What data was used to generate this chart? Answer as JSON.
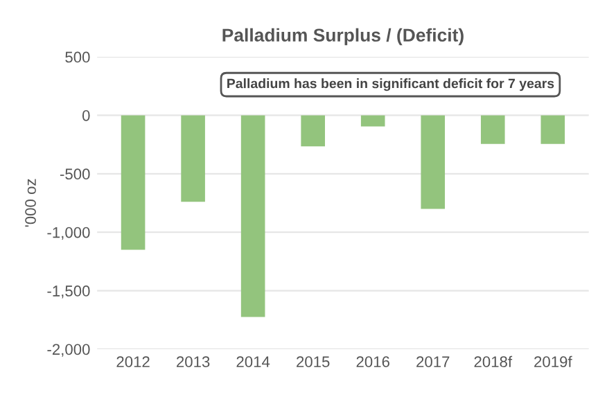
{
  "chart_data": {
    "type": "bar",
    "title": "Palladium Surplus / (Deficit)",
    "ylabel": "'000 oz",
    "categories": [
      "2012",
      "2013",
      "2014",
      "2015",
      "2016",
      "2017",
      "2018f",
      "2019f"
    ],
    "values": [
      -1150,
      -740,
      -1725,
      -265,
      -95,
      -800,
      -245,
      -245
    ],
    "color": "#93c47d",
    "ylim": [
      -2000,
      500
    ],
    "yticks": [
      {
        "value": -2000,
        "label": "-2,000"
      },
      {
        "value": -1500,
        "label": "-1,500"
      },
      {
        "value": -1000,
        "label": "-1,000"
      },
      -500,
      0,
      500
    ],
    "grid": "y",
    "annotations": [
      "Palladium has been in significant deficit for 7 years"
    ]
  }
}
